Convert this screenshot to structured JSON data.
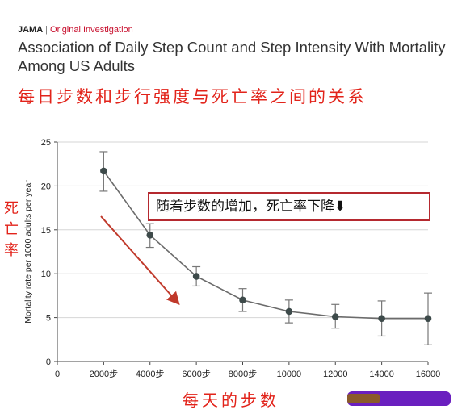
{
  "header": {
    "journal": "JAMA",
    "separator": "|",
    "section": "Original Investigation",
    "title": "Association of Daily Step Count and Step Intensity With Mortality Among US Adults"
  },
  "annotations": {
    "cn_title": "每日步数和步行强度与死亡率之间的关系",
    "cn_ylabel": "死亡率",
    "cn_xlabel": "每天的步数",
    "callout": "随着步数的增加，死亡率下降⬇",
    "accent_color": "#e2231a",
    "redaction_color": "#6a1fbf"
  },
  "chart_data": {
    "type": "line",
    "title": "Association of Daily Step Count and Step Intensity With Mortality Among US Adults",
    "xlabel": "",
    "ylabel": "Mortality rate per 1000 adults per year",
    "xlim": [
      0,
      16000
    ],
    "ylim": [
      0,
      25
    ],
    "x_ticks": [
      0,
      2000,
      4000,
      6000,
      8000,
      10000,
      12000,
      14000,
      16000
    ],
    "x_tick_labels": [
      "0",
      "2000步",
      "4000步",
      "6000步",
      "8000步",
      "10000",
      "12000",
      "14000",
      "16000"
    ],
    "y_ticks": [
      0,
      5,
      10,
      15,
      20,
      25
    ],
    "grid": "horizontal",
    "series": [
      {
        "x": [
          2000,
          4000,
          6000,
          8000,
          10000,
          12000,
          14000,
          16000
        ],
        "values": [
          21.7,
          14.4,
          9.7,
          7.0,
          5.7,
          5.1,
          4.9,
          4.9
        ],
        "ci_low": [
          19.4,
          13.0,
          8.6,
          5.7,
          4.4,
          3.8,
          2.9,
          1.9
        ],
        "ci_high": [
          23.9,
          15.7,
          10.8,
          8.3,
          7.0,
          6.5,
          6.9,
          7.8
        ]
      }
    ]
  }
}
